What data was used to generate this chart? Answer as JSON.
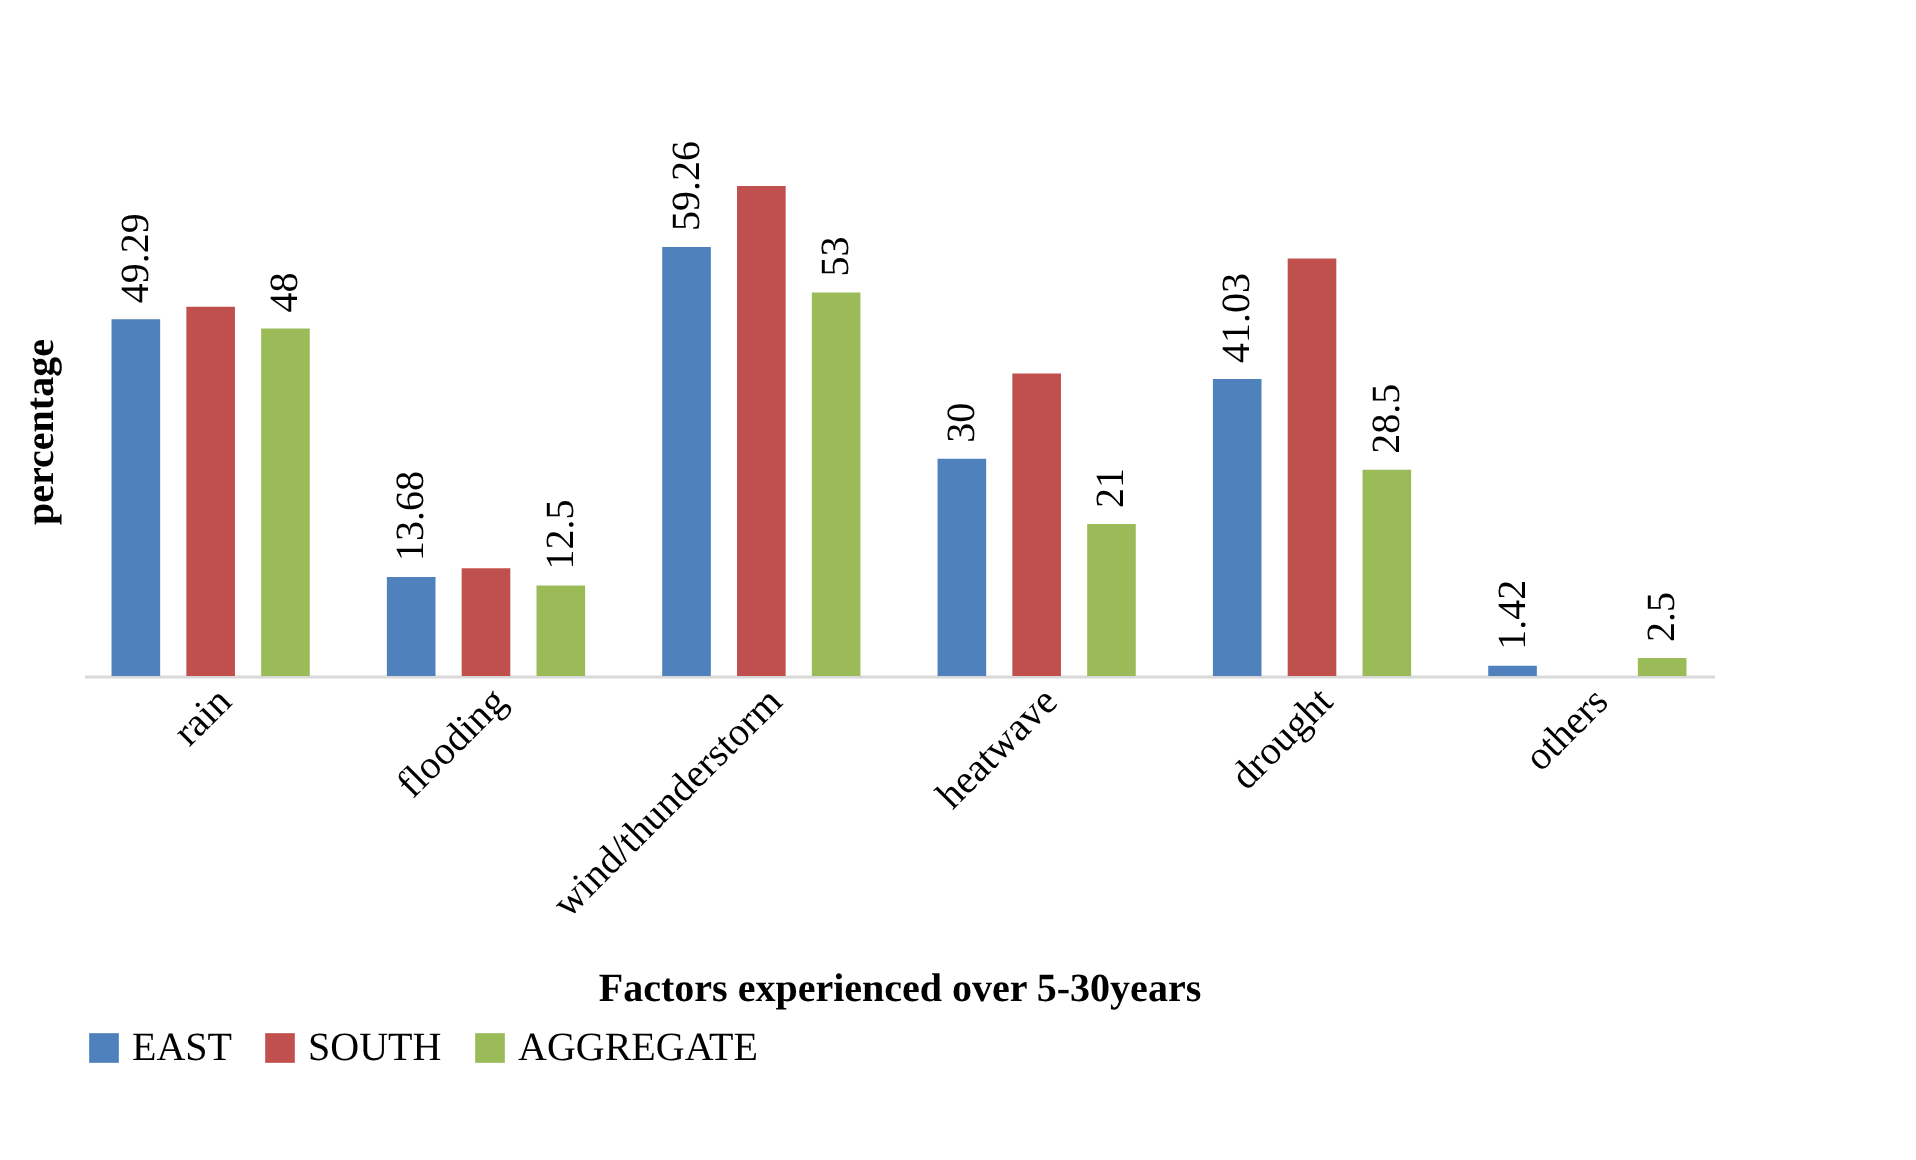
{
  "chart_data": {
    "type": "bar",
    "xlabel": "Factors experienced over 5-30years",
    "ylabel": "percentage",
    "categories": [
      "rain",
      "flooding",
      "wind/thunderstorm",
      "heatwave",
      "drought",
      "others"
    ],
    "series": [
      {
        "name": "EAST",
        "color": "#4f81bd",
        "values": [
          49.29,
          13.68,
          59.26,
          30,
          41.03,
          1.42
        ],
        "value_labels": [
          "49.29",
          "13.68",
          "59.26",
          "30",
          "41.03",
          "1.42"
        ]
      },
      {
        "name": "SOUTH",
        "color": "#c0504d",
        "values": [
          51,
          14.9,
          67.7,
          41.8,
          57.7,
          null
        ]
      },
      {
        "name": "AGGREGATE",
        "color": "#9bbb59",
        "values": [
          48,
          12.5,
          53,
          21,
          28.5,
          2.5
        ],
        "value_labels": [
          "48",
          "12.5",
          "53",
          "21",
          "28.5",
          "2.5"
        ]
      }
    ],
    "legend": "bottom",
    "grid": false
  }
}
